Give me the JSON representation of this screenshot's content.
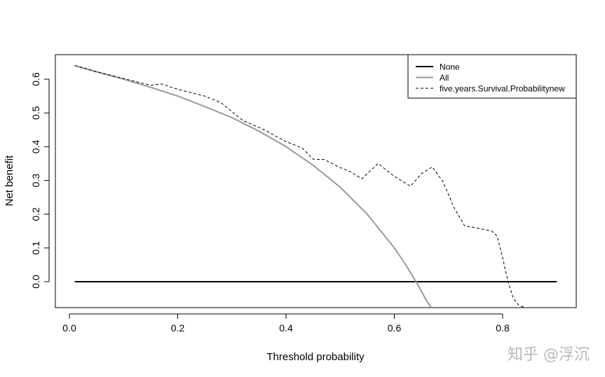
{
  "chart_data": {
    "type": "line",
    "title": "",
    "xlabel": "Threshold probability",
    "ylabel": "Net benefit",
    "xlim": [
      0.0,
      0.9
    ],
    "ylim": [
      -0.08,
      0.68
    ],
    "xticks": [
      "0.0",
      "0.2",
      "0.4",
      "0.6",
      "0.8"
    ],
    "yticks": [
      "0.0",
      "0.1",
      "0.2",
      "0.3",
      "0.4",
      "0.5",
      "0.6"
    ],
    "grid": false,
    "legend_position": "top-right",
    "series": [
      {
        "name": "None",
        "color": "#000000",
        "style": "solid",
        "x": [
          0.01,
          0.9
        ],
        "y": [
          0.0,
          0.0
        ]
      },
      {
        "name": "All",
        "color": "#999999",
        "style": "solid",
        "x": [
          0.01,
          0.05,
          0.1,
          0.15,
          0.2,
          0.25,
          0.3,
          0.35,
          0.4,
          0.45,
          0.5,
          0.55,
          0.6,
          0.62,
          0.64,
          0.65,
          0.66,
          0.67
        ],
        "y": [
          0.64,
          0.622,
          0.6,
          0.576,
          0.55,
          0.519,
          0.486,
          0.446,
          0.4,
          0.345,
          0.28,
          0.2,
          0.1,
          0.053,
          0.0,
          -0.028,
          -0.058,
          -0.08
        ]
      },
      {
        "name": "five.years.Survival.Probabilitynew",
        "color": "#000000",
        "style": "dashed",
        "x": [
          0.01,
          0.05,
          0.1,
          0.15,
          0.17,
          0.2,
          0.25,
          0.28,
          0.32,
          0.36,
          0.4,
          0.43,
          0.45,
          0.47,
          0.5,
          0.52,
          0.54,
          0.57,
          0.6,
          0.63,
          0.65,
          0.67,
          0.69,
          0.71,
          0.73,
          0.75,
          0.78,
          0.79,
          0.8,
          0.81,
          0.82,
          0.83,
          0.84,
          0.85
        ],
        "y": [
          0.641,
          0.622,
          0.602,
          0.582,
          0.586,
          0.57,
          0.55,
          0.53,
          0.478,
          0.45,
          0.415,
          0.396,
          0.363,
          0.362,
          0.338,
          0.325,
          0.305,
          0.35,
          0.312,
          0.283,
          0.32,
          0.34,
          0.296,
          0.22,
          0.165,
          0.16,
          0.15,
          0.135,
          0.07,
          0.0,
          -0.05,
          -0.07,
          -0.076,
          -0.08
        ]
      }
    ]
  },
  "watermark": "知乎 @浮沉"
}
